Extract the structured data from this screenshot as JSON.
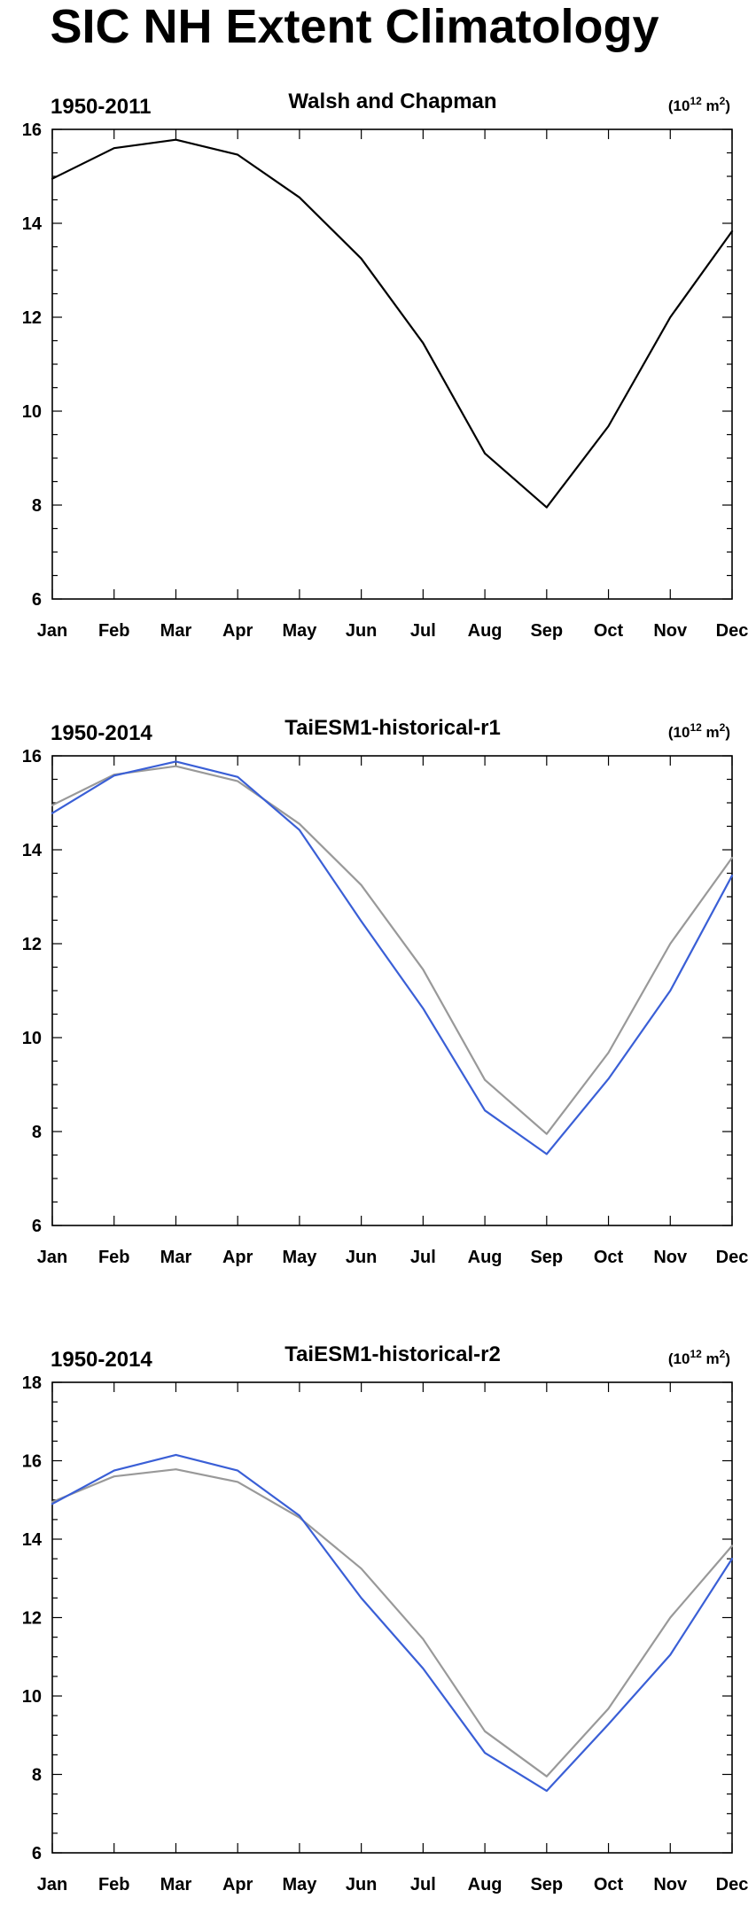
{
  "page": {
    "title": "SIC NH Extent Climatology"
  },
  "chart_data": [
    {
      "type": "line",
      "left_label": "1950-2011",
      "title": "Walsh and Chapman",
      "units_base": "(10",
      "units_exp": "12",
      "units_tail": " m",
      "units_exp2": "2",
      "units_close": ")",
      "categories": [
        "Jan",
        "Feb",
        "Mar",
        "Apr",
        "May",
        "Jun",
        "Jul",
        "Aug",
        "Sep",
        "Oct",
        "Nov",
        "Dec"
      ],
      "ylim": [
        6,
        16
      ],
      "yticks": [
        "6",
        "8",
        "10",
        "12",
        "14",
        "16"
      ],
      "series": [
        {
          "color": "#000000",
          "values": [
            14.95,
            15.6,
            15.78,
            15.46,
            14.55,
            13.25,
            11.45,
            9.1,
            7.95,
            9.68,
            12.0,
            13.83
          ]
        }
      ]
    },
    {
      "type": "line",
      "left_label": "1950-2014",
      "title": "TaiESM1-historical-r1",
      "units_base": "(10",
      "units_exp": "12",
      "units_tail": " m",
      "units_exp2": "2",
      "units_close": ")",
      "categories": [
        "Jan",
        "Feb",
        "Mar",
        "Apr",
        "May",
        "Jun",
        "Jul",
        "Aug",
        "Sep",
        "Oct",
        "Nov",
        "Dec"
      ],
      "ylim": [
        6,
        16
      ],
      "yticks": [
        "6",
        "8",
        "10",
        "12",
        "14",
        "16"
      ],
      "series": [
        {
          "color": "#999999",
          "values": [
            14.95,
            15.6,
            15.78,
            15.46,
            14.55,
            13.25,
            11.45,
            9.1,
            7.95,
            9.68,
            12.0,
            13.83
          ]
        },
        {
          "color": "#3a5fd6",
          "values": [
            14.78,
            15.58,
            15.88,
            15.55,
            14.42,
            12.48,
            10.62,
            8.45,
            7.52,
            9.12,
            11.0,
            13.45
          ]
        }
      ]
    },
    {
      "type": "line",
      "left_label": "1950-2014",
      "title": "TaiESM1-historical-r2",
      "units_base": "(10",
      "units_exp": "12",
      "units_tail": " m",
      "units_exp2": "2",
      "units_close": ")",
      "categories": [
        "Jan",
        "Feb",
        "Mar",
        "Apr",
        "May",
        "Jun",
        "Jul",
        "Aug",
        "Sep",
        "Oct",
        "Nov",
        "Dec"
      ],
      "ylim": [
        6,
        18
      ],
      "yticks": [
        "6",
        "8",
        "10",
        "12",
        "14",
        "16",
        "18"
      ],
      "series": [
        {
          "color": "#999999",
          "values": [
            14.95,
            15.6,
            15.78,
            15.46,
            14.55,
            13.25,
            11.45,
            9.1,
            7.95,
            9.68,
            12.0,
            13.83
          ]
        },
        {
          "color": "#3a5fd6",
          "values": [
            14.9,
            15.75,
            16.15,
            15.75,
            14.6,
            12.5,
            10.7,
            8.55,
            7.58,
            9.28,
            11.05,
            13.5
          ]
        }
      ]
    }
  ]
}
